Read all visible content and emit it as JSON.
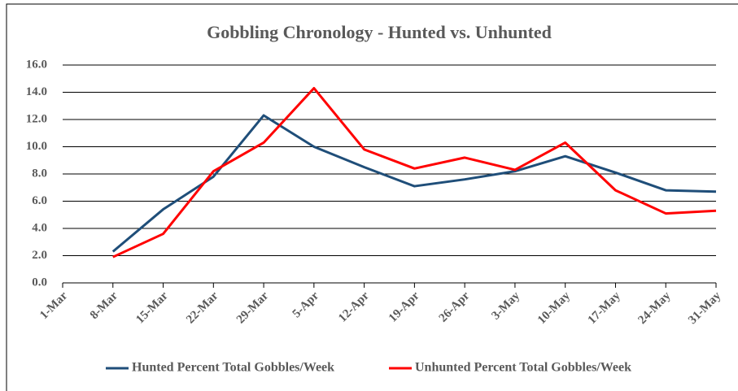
{
  "chart_data": {
    "type": "line",
    "title": "Gobbling Chronology - Hunted vs. Unhunted",
    "categories": [
      "1-Mar",
      "8-Mar",
      "15-Mar",
      "22-Mar",
      "29-Mar",
      "5-Apr",
      "12-Apr",
      "19-Apr",
      "26-Apr",
      "3-May",
      "10-May",
      "17-May",
      "24-May",
      "31-May"
    ],
    "series": [
      {
        "name": "Hunted Percent Total Gobbles/Week",
        "color": "#1f4e79",
        "values": [
          null,
          2.3,
          5.4,
          7.8,
          12.3,
          10.0,
          8.5,
          7.1,
          7.6,
          8.2,
          9.3,
          8.1,
          6.8,
          6.7
        ]
      },
      {
        "name": "Unhunted Percent Total Gobbles/Week",
        "color": "#ff0000",
        "values": [
          null,
          1.9,
          3.6,
          8.2,
          10.3,
          14.3,
          9.8,
          8.4,
          9.2,
          8.3,
          10.3,
          6.8,
          5.1,
          5.3
        ]
      }
    ],
    "ylim": [
      0,
      16
    ],
    "yticks": [
      {
        "value": 0,
        "label": "0.0"
      },
      {
        "value": 2,
        "label": "2.0"
      },
      {
        "value": 4,
        "label": "4.0"
      },
      {
        "value": 6,
        "label": "6.0"
      },
      {
        "value": 8,
        "label": "8.0"
      },
      {
        "value": 10,
        "label": "10.0"
      },
      {
        "value": 12,
        "label": "12.0"
      },
      {
        "value": 14,
        "label": "14.0"
      },
      {
        "value": 16,
        "label": "16.0"
      }
    ],
    "grid": true,
    "legend": "bottom"
  }
}
